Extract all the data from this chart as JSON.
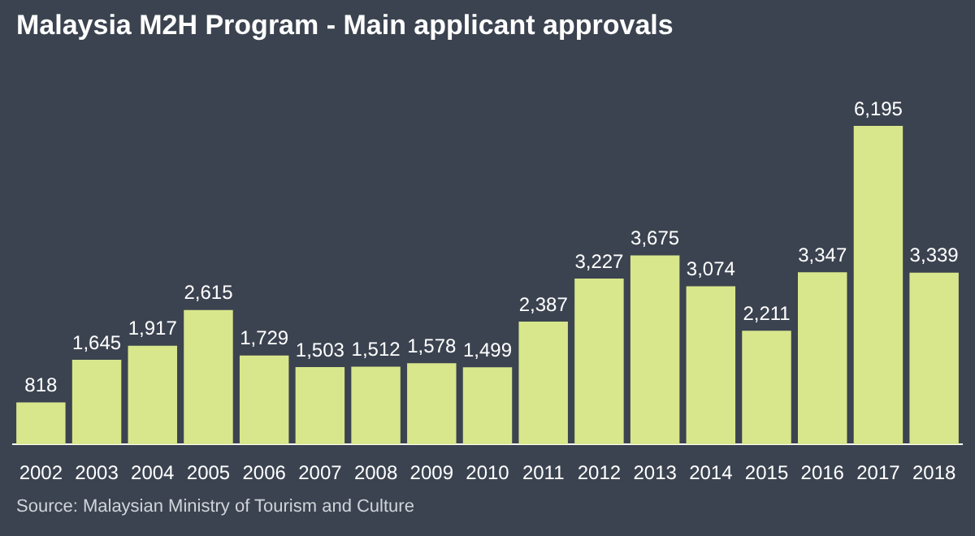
{
  "chart_data": {
    "type": "bar",
    "title": "Malaysia M2H Program - Main applicant approvals",
    "categories": [
      "2002",
      "2003",
      "2004",
      "2005",
      "2006",
      "2007",
      "2008",
      "2009",
      "2010",
      "2011",
      "2012",
      "2013",
      "2014",
      "2015",
      "2016",
      "2017",
      "2018"
    ],
    "values": [
      818,
      1645,
      1917,
      2615,
      1729,
      1503,
      1512,
      1578,
      1499,
      2387,
      3227,
      3675,
      3074,
      2211,
      3347,
      6195,
      3339
    ],
    "value_labels": [
      "818",
      "1,645",
      "1,917",
      "2,615",
      "1,729",
      "1,503",
      "1,512",
      "1,578",
      "1,499",
      "2,387",
      "3,227",
      "3,675",
      "3,074",
      "2,211",
      "3,347",
      "6,195",
      "3,339"
    ],
    "color": "#d9e78c",
    "annotations": [
      "Source: Malaysian Ministry of Tourism and Culture"
    ]
  }
}
